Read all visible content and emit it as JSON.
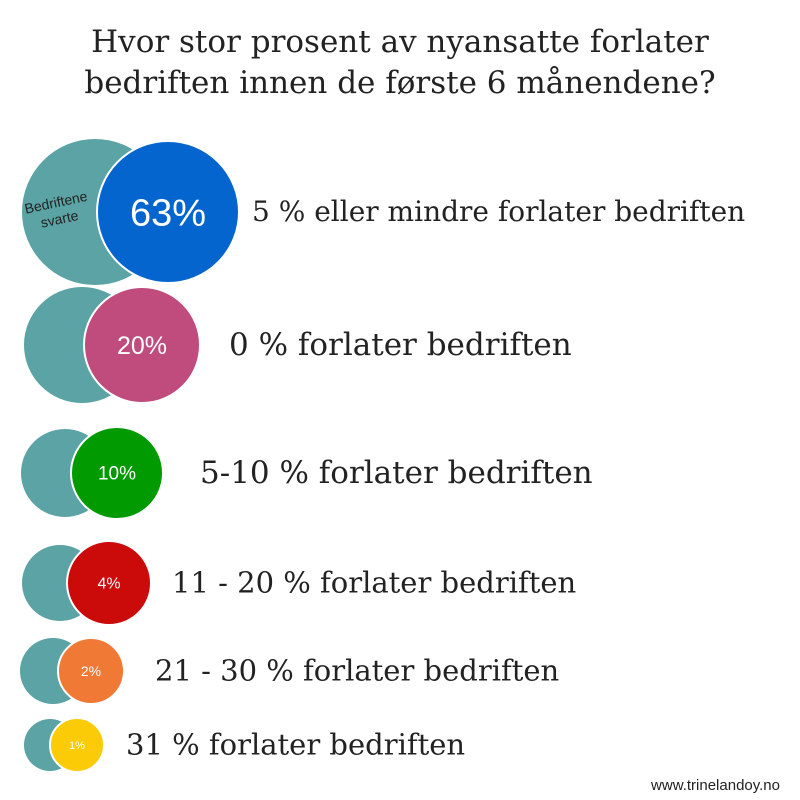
{
  "title": {
    "line1": "Hvor stor prosent av nyansatte forlater",
    "line2": "bedriften innen de første 6 månendene?"
  },
  "footer": {
    "credit": "www.trinelandoy.no"
  },
  "chart_data": {
    "type": "bubble",
    "title": "Hvor stor prosent av nyansatte forlater bedriften innen de første 6 månendene?",
    "annotation": "Bedriftene svarte",
    "base_color": "#5ba3a4",
    "categories": [
      "5 % eller mindre forlater bedriften",
      "0 % forlater bedriften",
      "5-10 % forlater bedriften",
      "11 - 20 % forlater bedriften",
      "21 - 30 % forlater bedriften",
      "31 % forlater bedriften"
    ],
    "values": [
      63,
      20,
      10,
      4,
      2,
      1
    ],
    "value_labels": [
      "63%",
      "20%",
      "10%",
      "4%",
      "2%",
      "1%"
    ],
    "colors": [
      "#0565cf",
      "#c04b7d",
      "#019a01",
      "#cb0a0a",
      "#f07935",
      "#fbcb07"
    ],
    "unit": "%"
  }
}
